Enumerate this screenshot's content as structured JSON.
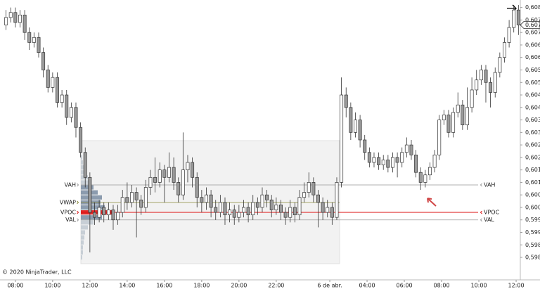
{
  "chart_data": {
    "type": "candlestick",
    "open": [
      0.6073,
      0.6076,
      0.6078,
      0.6074,
      0.6077,
      0.607,
      0.6066,
      0.6068,
      0.6062,
      0.6055,
      0.6048,
      0.6052,
      0.6042,
      0.6045,
      0.6036,
      0.604,
      0.6032,
      0.6022,
      0.6012,
      0.5998,
      0.5996,
      0.6,
      0.5997,
      0.5999,
      0.5995,
      0.5998,
      0.6004,
      0.6002,
      0.6006,
      0.6003,
      0.6,
      0.6008,
      0.6012,
      0.601,
      0.6015,
      0.6012,
      0.6016,
      0.601,
      0.6005,
      0.6015,
      0.6018,
      0.6012,
      0.6004,
      0.6002,
      0.6005,
      0.6,
      0.5998,
      0.6002,
      0.5997,
      0.5999,
      0.5996,
      0.5998,
      0.6,
      0.5997,
      0.6002,
      0.6,
      0.6005,
      0.6003,
      0.5999,
      0.6001,
      0.5998,
      0.5996,
      0.6,
      0.5997,
      0.6004,
      0.6006,
      0.601,
      0.6005,
      0.6002,
      0.5998,
      0.6,
      0.5996,
      0.601,
      0.6045,
      0.604,
      0.603,
      0.6035,
      0.6027,
      0.6022,
      0.6018,
      0.602,
      0.6017,
      0.6019,
      0.6016,
      0.602,
      0.6018,
      0.6022,
      0.6025,
      0.6021,
      0.6014,
      0.601,
      0.6013,
      0.6016,
      0.6021,
      0.6035,
      0.6037,
      0.603,
      0.6038,
      0.6041,
      0.6033,
      0.604,
      0.6047,
      0.6051,
      0.6055,
      0.605,
      0.6046,
      0.6054,
      0.606,
      0.6066,
      0.6072,
      0.6079
    ],
    "high": [
      0.6079,
      0.608,
      0.608,
      0.6079,
      0.6079,
      0.6072,
      0.607,
      0.607,
      0.6064,
      0.6057,
      0.6054,
      0.6054,
      0.6047,
      0.6047,
      0.6042,
      0.6042,
      0.6034,
      0.6024,
      0.6014,
      0.6002,
      0.6003,
      0.6002,
      0.6002,
      0.6001,
      0.6001,
      0.6007,
      0.601,
      0.6009,
      0.6008,
      0.6005,
      0.6011,
      0.6015,
      0.602,
      0.6018,
      0.6017,
      0.6022,
      0.602,
      0.6012,
      0.603,
      0.6021,
      0.602,
      0.6014,
      0.6007,
      0.6008,
      0.6007,
      0.6003,
      0.6005,
      0.6004,
      0.6002,
      0.6001,
      0.6001,
      0.6003,
      0.6002,
      0.6005,
      0.6004,
      0.6008,
      0.6007,
      0.6005,
      0.6004,
      0.6003,
      0.6,
      0.6003,
      0.6002,
      0.6007,
      0.601,
      0.6014,
      0.6012,
      0.6007,
      0.6004,
      0.6003,
      0.6002,
      0.6012,
      0.6052,
      0.6048,
      0.6042,
      0.6038,
      0.6037,
      0.6029,
      0.6024,
      0.6022,
      0.6022,
      0.6021,
      0.6021,
      0.6022,
      0.6022,
      0.6024,
      0.6028,
      0.6027,
      0.6023,
      0.6016,
      0.6015,
      0.6018,
      0.6023,
      0.6037,
      0.6039,
      0.6039,
      0.604,
      0.6046,
      0.6043,
      0.6048,
      0.6052,
      0.6055,
      0.6057,
      0.6057,
      0.6052,
      0.6056,
      0.6062,
      0.6068,
      0.6075,
      0.6081,
      0.6081
    ],
    "low": [
      0.6071,
      0.6074,
      0.6072,
      0.6072,
      0.6067,
      0.6063,
      0.6064,
      0.606,
      0.6052,
      0.6046,
      0.6046,
      0.604,
      0.604,
      0.6033,
      0.6034,
      0.6028,
      0.602,
      0.6008,
      0.5982,
      0.5993,
      0.5994,
      0.5994,
      0.5995,
      0.5991,
      0.5993,
      0.5996,
      0.5999,
      0.6,
      0.5988,
      0.5997,
      0.5998,
      0.6005,
      0.6006,
      0.6008,
      0.6002,
      0.601,
      0.6007,
      0.6002,
      0.6003,
      0.601,
      0.6008,
      0.6,
      0.5998,
      0.5999,
      0.5996,
      0.5995,
      0.5996,
      0.5993,
      0.5994,
      0.5993,
      0.5994,
      0.5996,
      0.5994,
      0.5995,
      0.5997,
      0.5998,
      0.6,
      0.5996,
      0.5997,
      0.5995,
      0.5993,
      0.5994,
      0.5994,
      0.5995,
      0.6002,
      0.6004,
      0.6002,
      0.5992,
      0.5995,
      0.5996,
      0.5993,
      0.5995,
      0.6008,
      0.6036,
      0.6027,
      0.6028,
      0.6024,
      0.6019,
      0.6016,
      0.6016,
      0.6015,
      0.6015,
      0.6014,
      0.6014,
      0.6012,
      0.6016,
      0.602,
      0.6019,
      0.6012,
      0.6007,
      0.6008,
      0.6011,
      0.6014,
      0.6019,
      0.6033,
      0.6028,
      0.6028,
      0.6036,
      0.6031,
      0.6031,
      0.6038,
      0.6045,
      0.6049,
      0.6042,
      0.604,
      0.6044,
      0.6052,
      0.6058,
      0.6064,
      0.607,
      0.6069
    ],
    "close": [
      0.6076,
      0.6078,
      0.6074,
      0.6077,
      0.607,
      0.6066,
      0.6068,
      0.6062,
      0.6055,
      0.6048,
      0.6052,
      0.6042,
      0.6045,
      0.6036,
      0.604,
      0.6032,
      0.6022,
      0.6012,
      0.5998,
      0.5996,
      0.6,
      0.5997,
      0.5999,
      0.5995,
      0.5998,
      0.6004,
      0.6002,
      0.6006,
      0.6003,
      0.6,
      0.6008,
      0.6012,
      0.601,
      0.6015,
      0.6012,
      0.6016,
      0.601,
      0.6005,
      0.6015,
      0.6018,
      0.6012,
      0.6004,
      0.6002,
      0.6005,
      0.6,
      0.5998,
      0.6002,
      0.5997,
      0.5999,
      0.5996,
      0.5998,
      0.6,
      0.5997,
      0.6002,
      0.6,
      0.6005,
      0.6003,
      0.5999,
      0.6001,
      0.5998,
      0.5996,
      0.6,
      0.5997,
      0.6004,
      0.6006,
      0.601,
      0.6005,
      0.6002,
      0.5998,
      0.6,
      0.5996,
      0.601,
      0.6045,
      0.604,
      0.603,
      0.6035,
      0.6027,
      0.6022,
      0.6018,
      0.602,
      0.6017,
      0.6019,
      0.6016,
      0.602,
      0.6018,
      0.6022,
      0.6025,
      0.6021,
      0.6014,
      0.601,
      0.6013,
      0.6016,
      0.6021,
      0.6035,
      0.6037,
      0.603,
      0.6038,
      0.6041,
      0.6033,
      0.604,
      0.6047,
      0.6051,
      0.6055,
      0.605,
      0.6046,
      0.6054,
      0.606,
      0.6066,
      0.6072,
      0.6079,
      0.6073
    ],
    "up_color": "#ffffff",
    "down_color": "#9a9a9a",
    "outline_color": "#333333",
    "xlim": [
      -1.3,
      110.4
    ],
    "xticks": [
      {
        "value": 2,
        "label": "08:00"
      },
      {
        "value": 10,
        "label": "10:00"
      },
      {
        "value": 18,
        "label": "12:00"
      },
      {
        "value": 26,
        "label": "14:00"
      },
      {
        "value": 34,
        "label": "16:00"
      },
      {
        "value": 42,
        "label": "18:00"
      },
      {
        "value": 50,
        "label": "20:00"
      },
      {
        "value": 58,
        "label": "22:00"
      },
      {
        "value": 69.5,
        "label": "6 de abr."
      },
      {
        "value": 77.5,
        "label": "04:00"
      },
      {
        "value": 85.5,
        "label": "06:00"
      },
      {
        "value": 93.5,
        "label": "08:00"
      },
      {
        "value": 101.5,
        "label": "10:00"
      },
      {
        "value": 109.5,
        "label": "12:00"
      }
    ],
    "ylim": [
      0.5971,
      0.6083
    ],
    "yticks": [
      {
        "value": 0.598,
        "label": "0,5980"
      },
      {
        "value": 0.5985,
        "label": "0,5985"
      },
      {
        "value": 0.599,
        "label": "0,5990"
      },
      {
        "value": 0.5995,
        "label": "0,5995"
      },
      {
        "value": 0.6,
        "label": "0,6000"
      },
      {
        "value": 0.6005,
        "label": "0,6005"
      },
      {
        "value": 0.601,
        "label": "0,6010"
      },
      {
        "value": 0.6015,
        "label": "0,6015"
      },
      {
        "value": 0.602,
        "label": "0,6020"
      },
      {
        "value": 0.6025,
        "label": "0,6025"
      },
      {
        "value": 0.603,
        "label": "0,6030"
      },
      {
        "value": 0.6035,
        "label": "0,6035"
      },
      {
        "value": 0.604,
        "label": "0,6040"
      },
      {
        "value": 0.6045,
        "label": "0,6045"
      },
      {
        "value": 0.605,
        "label": "0,6050"
      },
      {
        "value": 0.6055,
        "label": "0,6055"
      },
      {
        "value": 0.606,
        "label": "0,6060"
      },
      {
        "value": 0.6065,
        "label": "0,6065"
      },
      {
        "value": 0.607,
        "label": "0,6070"
      },
      {
        "value": 0.6075,
        "label": "0,6075"
      },
      {
        "value": 0.608,
        "label": "0,6080"
      }
    ],
    "last_price": {
      "value": 0.6073,
      "label": "0,6073"
    },
    "profile": {
      "prices": [
        0.598,
        0.5982,
        0.5984,
        0.5986,
        0.5988,
        0.599,
        0.5992,
        0.5994,
        0.5996,
        0.5998,
        0.6,
        0.6002,
        0.6004,
        0.6006,
        0.6008,
        0.601,
        0.6012,
        0.6014,
        0.6016,
        0.6018,
        0.602
      ],
      "volumes": [
        2,
        3,
        3,
        4,
        5,
        6,
        10,
        18,
        30,
        45,
        34,
        28,
        30,
        24,
        18,
        14,
        10,
        7,
        5,
        3,
        2
      ],
      "value_area_color": "#7f91a6",
      "outside_color": "#c3cbd3",
      "poc_color": "#dd1111"
    },
    "levels": [
      {
        "name": "VAH",
        "value": 0.6009,
        "color": "#999999"
      },
      {
        "name": "VWAP",
        "value": 0.6002,
        "color": "#8a8a3c"
      },
      {
        "name": "VPOC",
        "value": 0.5998,
        "color": "#dd1111"
      },
      {
        "name": "VAL",
        "value": 0.5995,
        "color": "#999999"
      }
    ],
    "right_levels": [
      {
        "name": "VAH",
        "value": 0.6009
      },
      {
        "name": "VPOC",
        "value": 0.5998
      },
      {
        "name": "VAL",
        "value": 0.5995
      }
    ],
    "copyright": "© 2020 NinjaTrader, LLC"
  }
}
